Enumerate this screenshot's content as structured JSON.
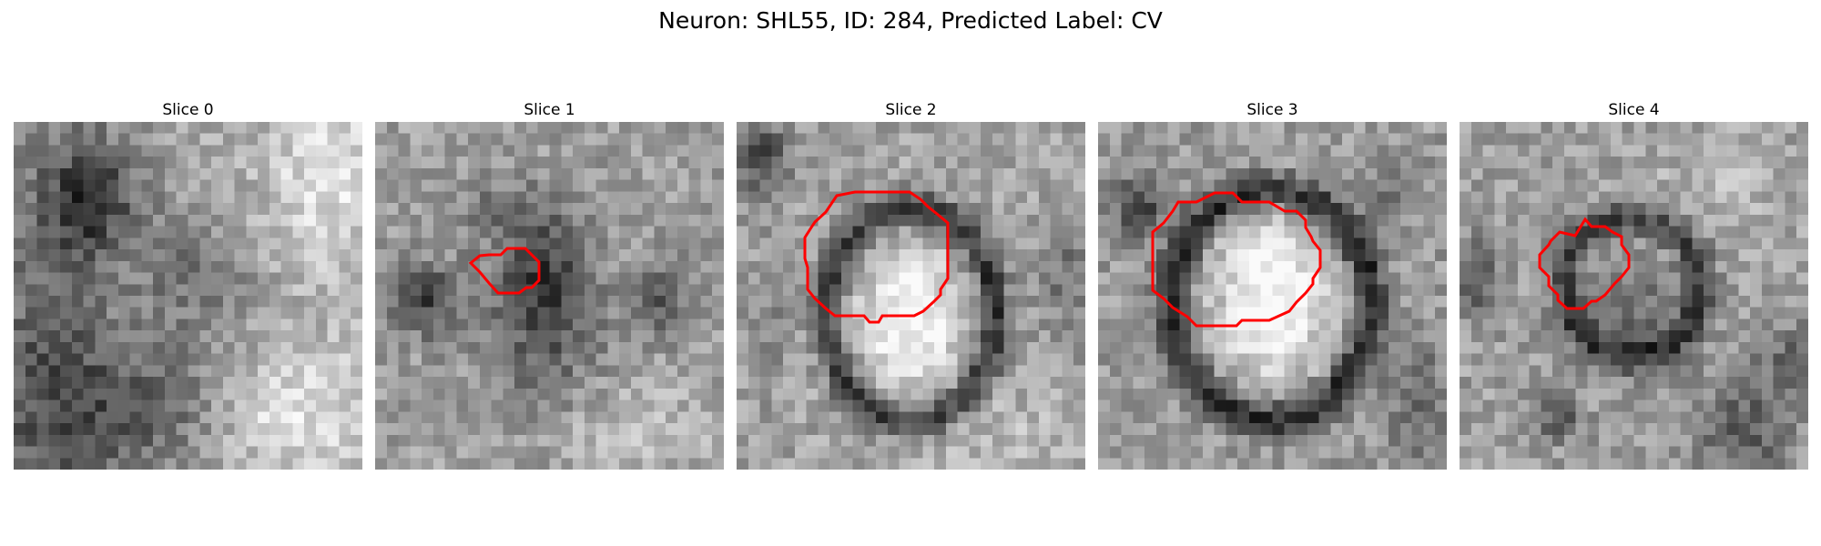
{
  "figure": {
    "title": "Neuron: SHL55, ID: 284, Predicted Label: CV"
  },
  "slices": [
    {
      "title": "Slice 0",
      "image_pattern": "blurred-dark-cell-clusters",
      "has_contour": false,
      "contour_color": "#ff0000"
    },
    {
      "title": "Slice 1",
      "image_pattern": "small-dark-cell-with-small-contour",
      "has_contour": true,
      "contour_color": "#ff0000"
    },
    {
      "title": "Slice 2",
      "image_pattern": "bright-oval-cell-with-dark-ring",
      "has_contour": true,
      "contour_color": "#ff0000"
    },
    {
      "title": "Slice 3",
      "image_pattern": "large-bright-oval-cell-with-dark-ring",
      "has_contour": true,
      "contour_color": "#ff0000"
    },
    {
      "title": "Slice 4",
      "image_pattern": "dark-ring-cell-with-contour",
      "has_contour": true,
      "contour_color": "#ff0000"
    }
  ]
}
